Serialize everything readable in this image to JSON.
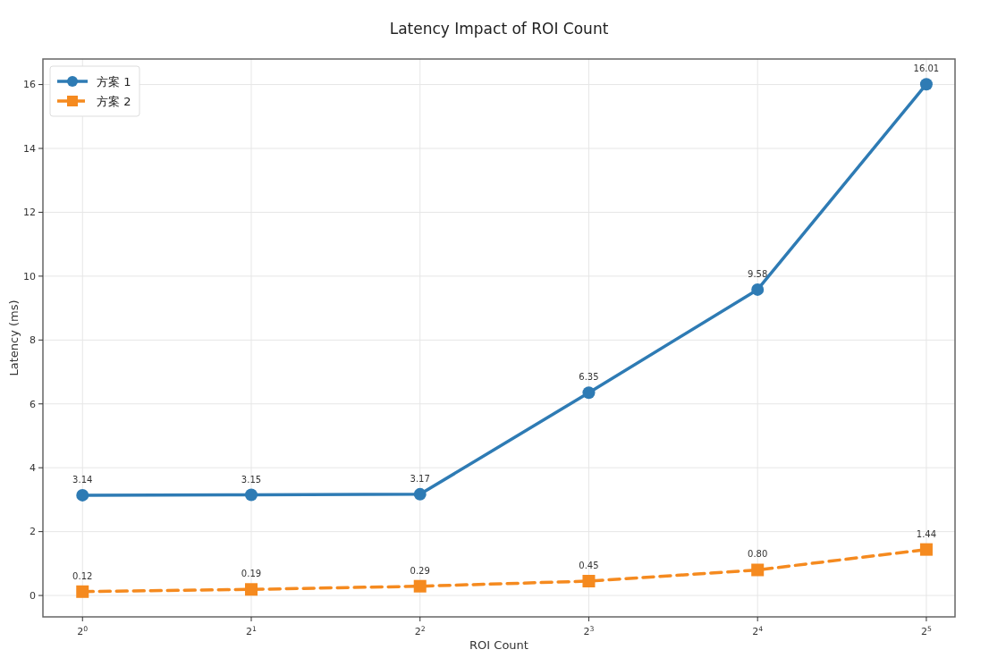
{
  "chart_data": {
    "type": "line",
    "title": "Latency Impact of ROI Count",
    "xlabel": "ROI Count",
    "ylabel": "Latency (ms)",
    "log": "x",
    "x": [
      1,
      2,
      4,
      8,
      16,
      32
    ],
    "xlim": [
      0.85,
      36
    ],
    "xticks": [
      {
        "value": 1,
        "label": "2$^{0}$"
      },
      {
        "value": 2,
        "label": "2$^{1}$"
      },
      {
        "value": 4,
        "label": "2$^{2}$"
      },
      {
        "value": 8,
        "label": "2$^{3}$"
      },
      {
        "value": 16,
        "label": "2$^{4}$"
      },
      {
        "value": 32,
        "label": "2$^{5}$"
      }
    ],
    "ylim": [
      -0.67,
      16.8
    ],
    "yticks": [
      0,
      2,
      4,
      6,
      8,
      10,
      12,
      14,
      16
    ],
    "grid": true,
    "legend": "top left",
    "series": [
      {
        "name": "方案 1",
        "color": "#2e7bb4",
        "values": [
          3.14,
          3.15,
          3.17,
          6.35,
          9.58,
          16.01
        ],
        "value_labels": [
          "3.14",
          "3.15",
          "3.17",
          "6.35",
          "9.58",
          "16.01"
        ],
        "marker": "circle",
        "line_style": "solid"
      },
      {
        "name": "方案 2",
        "color": "#f58a1f",
        "values": [
          0.12,
          0.19,
          0.29,
          0.45,
          0.8,
          1.44
        ],
        "value_labels": [
          "0.12",
          "0.19",
          "0.29",
          "0.45",
          "0.80",
          "1.44"
        ],
        "marker": "square",
        "line_style": "dashed"
      }
    ]
  }
}
